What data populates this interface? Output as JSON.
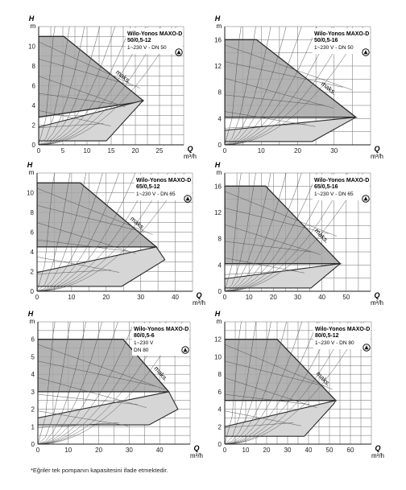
{
  "footnote": "*Eğriler tek pompanın kapasitesini ifade etmektedir.",
  "chart_data": [
    {
      "type": "area",
      "model": "Wilo-Yonos MAXO-D",
      "variant": "50/0,5-12",
      "supply": "1~230 V - DN 50",
      "x_label": "Q",
      "x_unit": "m³/h",
      "y_label": "H",
      "y_unit": "m",
      "xlim": [
        0,
        30
      ],
      "ylim": [
        0,
        12
      ],
      "x_ticks": [
        0,
        5,
        10,
        15,
        20,
        25
      ],
      "y_ticks": [
        0,
        2,
        4,
        6,
        8,
        10
      ],
      "annotation": "maks.",
      "max_curve": [
        [
          0,
          11
        ],
        [
          5.2,
          11
        ],
        [
          21.6,
          4.5
        ],
        [
          21.5,
          4.4
        ],
        [
          0,
          2.8
        ]
      ],
      "min_curve": [
        [
          0,
          1.8
        ],
        [
          21.6,
          4.5
        ],
        [
          14,
          0.4
        ],
        [
          0,
          0.4
        ]
      ]
    },
    {
      "type": "area",
      "model": "Wilo-Yonos MAXO-D",
      "variant": "50/0,5-16",
      "supply": "1~230 V - DN 50",
      "x_label": "Q",
      "x_unit": "m³/h",
      "y_label": "H",
      "y_unit": "m",
      "xlim": [
        0,
        40
      ],
      "ylim": [
        0,
        18
      ],
      "x_ticks": [
        0,
        10,
        20,
        30
      ],
      "y_ticks": [
        0,
        4,
        8,
        12,
        16
      ],
      "annotation": "maks.",
      "max_curve": [
        [
          0,
          16
        ],
        [
          8.7,
          16
        ],
        [
          36,
          4.2
        ],
        [
          0,
          4.2
        ]
      ],
      "min_curve": [
        [
          0,
          2.2
        ],
        [
          36,
          4.2
        ],
        [
          24,
          0.5
        ],
        [
          0,
          0.5
        ]
      ]
    },
    {
      "type": "area",
      "model": "Wilo-Yonos MAXO-D",
      "variant": "65/0,5-12",
      "supply": "1~230 V - DN 65",
      "x_label": "Q",
      "x_unit": "m³/h",
      "y_label": "H",
      "y_unit": "m",
      "xlim": [
        0,
        45
      ],
      "ylim": [
        0,
        12
      ],
      "x_ticks": [
        0,
        10,
        20,
        30,
        40
      ],
      "y_ticks": [
        0,
        2,
        4,
        6,
        8,
        10
      ],
      "annotation": "maks.",
      "max_curve": [
        [
          0,
          11
        ],
        [
          12.5,
          11
        ],
        [
          34.5,
          4.5
        ],
        [
          0,
          4.5
        ]
      ],
      "min_curve": [
        [
          0,
          1.9
        ],
        [
          34.5,
          4.5
        ],
        [
          37,
          3.2
        ],
        [
          24.5,
          0.5
        ],
        [
          0,
          0.5
        ]
      ]
    },
    {
      "type": "area",
      "model": "Wilo-Yonos MAXO-D",
      "variant": "65/0,5-16",
      "supply": "1~230 V - DN 65",
      "x_label": "Q",
      "x_unit": "m³/h",
      "y_label": "H",
      "y_unit": "m",
      "xlim": [
        0,
        60
      ],
      "ylim": [
        0,
        18
      ],
      "x_ticks": [
        0,
        10,
        20,
        30,
        40,
        50
      ],
      "y_ticks": [
        0,
        4,
        8,
        12,
        16
      ],
      "annotation": "maks.",
      "max_curve": [
        [
          0,
          16
        ],
        [
          16.8,
          16
        ],
        [
          47.5,
          4.2
        ],
        [
          0,
          4.2
        ]
      ],
      "min_curve": [
        [
          0,
          1.9
        ],
        [
          47.5,
          4.2
        ],
        [
          35.5,
          0.5
        ],
        [
          0,
          0.5
        ]
      ]
    },
    {
      "type": "area",
      "model": "Wilo-Yonos MAXO-D",
      "variant": "80/0,5-6",
      "supply": "1~230 V",
      "dn": "DN 80",
      "x_label": "Q",
      "x_unit": "m³/h",
      "y_label": "H",
      "y_unit": "m",
      "xlim": [
        0,
        50
      ],
      "ylim": [
        0,
        7
      ],
      "x_ticks": [
        0,
        10,
        20,
        30,
        40
      ],
      "y_ticks": [
        0,
        1,
        2,
        3,
        4,
        5,
        6
      ],
      "annotation": "maks.",
      "max_curve": [
        [
          0,
          6
        ],
        [
          28,
          6
        ],
        [
          43,
          3
        ],
        [
          0,
          3
        ]
      ],
      "min_curve": [
        [
          0,
          1.5
        ],
        [
          43,
          3
        ],
        [
          46,
          2
        ],
        [
          36.5,
          1.1
        ],
        [
          0,
          1.1
        ]
      ]
    },
    {
      "type": "area",
      "model": "Wilo-Yonos MAXO-D",
      "variant": "80/0,5-12",
      "supply": "1~230 V - DN 80",
      "x_label": "Q",
      "x_unit": "m³/h",
      "y_label": "H",
      "y_unit": "m",
      "xlim": [
        0,
        70
      ],
      "ylim": [
        0,
        14
      ],
      "x_ticks": [
        0,
        10,
        20,
        30,
        40,
        50,
        60
      ],
      "y_ticks": [
        0,
        2,
        4,
        6,
        8,
        10,
        12
      ],
      "annotation": "maks.",
      "max_curve": [
        [
          0,
          12
        ],
        [
          25,
          12
        ],
        [
          53,
          5
        ],
        [
          0,
          5
        ]
      ],
      "min_curve": [
        [
          0,
          2
        ],
        [
          53,
          5
        ],
        [
          52,
          4.6
        ],
        [
          38,
          0.9
        ],
        [
          0,
          0.9
        ]
      ]
    }
  ]
}
